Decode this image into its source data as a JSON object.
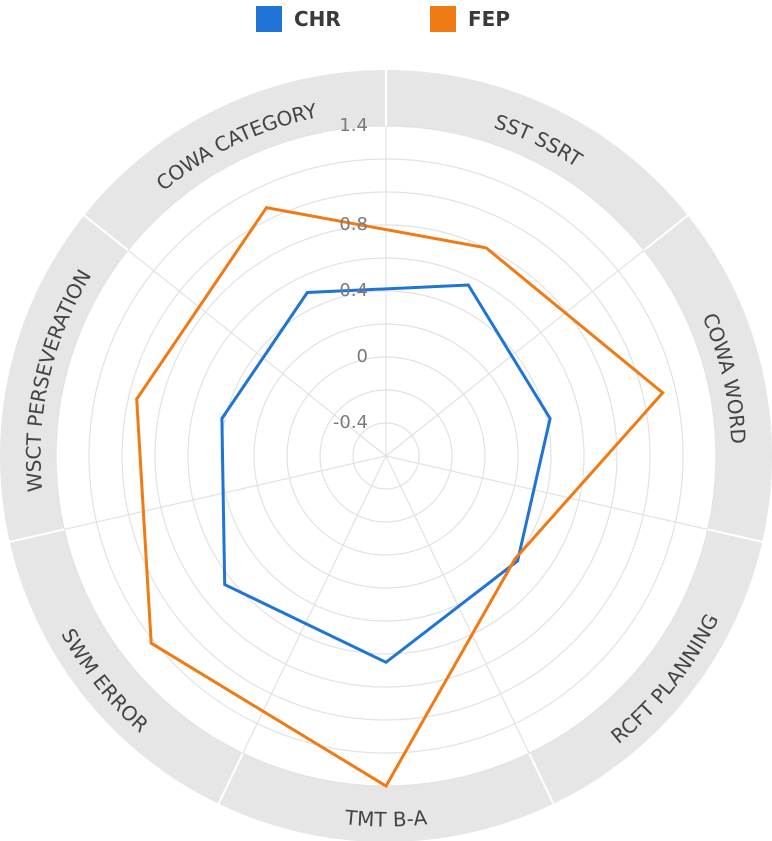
{
  "chart_data": {
    "type": "radar",
    "legend_position": "top-center",
    "grid": true,
    "radial_range": [
      -0.6,
      1.4
    ],
    "radial_tick_labels": [
      "-0.4",
      "0",
      "0.4",
      "0.8",
      "1.4"
    ],
    "radial_tick_values": [
      -0.4,
      0.0,
      0.4,
      0.8,
      1.4
    ],
    "axes": [
      "SST SSRT",
      "COWA WORD",
      "RCFT PLANNING",
      "TMT B-A",
      "SWM ERROR",
      "WSCT PERSEVERATION",
      "COWA CATEGORY"
    ],
    "series": [
      {
        "name": "CHR",
        "color": "#1f74d6",
        "values": [
          0.55,
          0.42,
          0.42,
          0.65,
          0.65,
          0.42,
          0.5
        ]
      },
      {
        "name": "FEP",
        "color": "#f07a13",
        "values": [
          0.8,
          1.12,
          0.4,
          1.4,
          1.22,
          0.95,
          1.07
        ]
      }
    ]
  },
  "colors": {
    "grid_band": "#e6e6e6",
    "grid_line": "#e2e2e2",
    "axis_text": "#444444",
    "tick_text": "#7a7a7a"
  }
}
